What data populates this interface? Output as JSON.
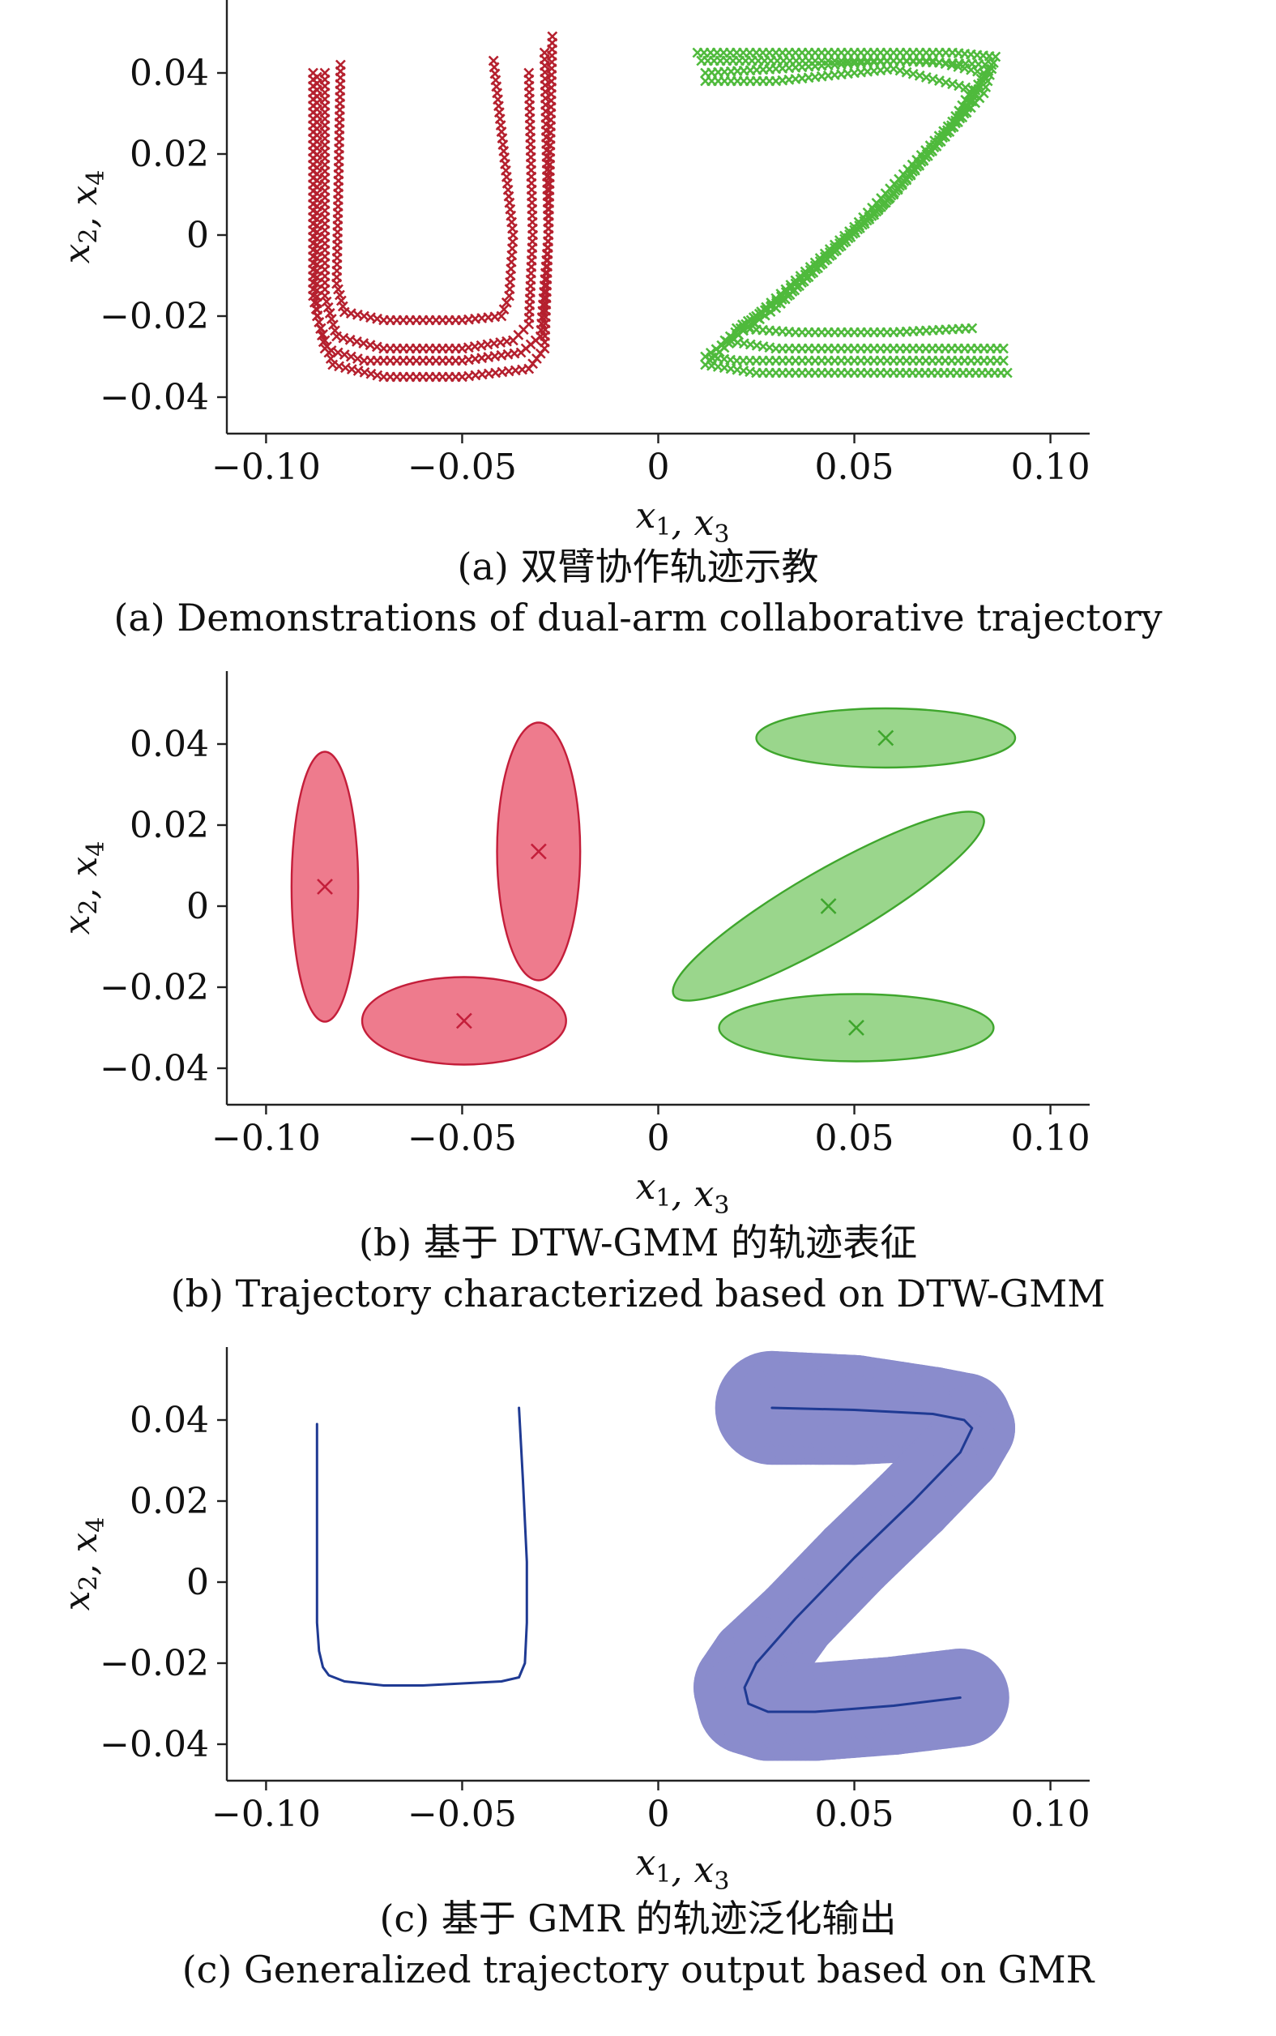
{
  "panels": [
    {
      "caption_cn": "(a) 双臂协作轨迹示教",
      "caption_en": "(a) Demonstrations of dual-arm collaborative trajectory"
    },
    {
      "caption_cn": "(b) 基于 DTW-GMM 的轨迹表征",
      "caption_en": "(b) Trajectory characterized based on DTW-GMM"
    },
    {
      "caption_cn": "(c) 基于 GMR 的轨迹泛化输出",
      "caption_en": "(c) Generalized trajectory output based on GMR"
    }
  ],
  "colors": {
    "u_demo": "#b5202e",
    "z_demo": "#4fba3c",
    "u_gmm_fill": "#ec6d81",
    "u_gmm_edge": "#c41e3a",
    "z_gmm_fill": "#8fd17f",
    "z_gmm_edge": "#3fa62d",
    "gmr_band": "#8a8ccc",
    "gmr_line": "#1f3a93"
  },
  "chart_data": [
    {
      "type": "scatter",
      "xlabel": "x1, x3",
      "ylabel": "x2, x4",
      "xlim": [
        -0.11,
        0.11
      ],
      "ylim": [
        -0.049,
        0.058
      ],
      "xticks": [
        -0.1,
        -0.05,
        0,
        0.05,
        0.1
      ],
      "xtick_labels": [
        "−0.10",
        "−0.05",
        "0",
        "0.05",
        "0.10"
      ],
      "yticks": [
        0.04,
        0.02,
        0,
        -0.02,
        -0.04
      ],
      "ytick_labels": [
        "0.04",
        "0.02",
        "0",
        "−0.02",
        "−0.04"
      ],
      "marker": "x",
      "series": [
        {
          "color": "#b5202e",
          "demos": [
            [
              [
                -0.088,
                0.04
              ],
              [
                -0.088,
                -0.015
              ],
              [
                -0.085,
                -0.028
              ],
              [
                -0.075,
                -0.031
              ],
              [
                -0.05,
                -0.031
              ],
              [
                -0.035,
                -0.029
              ],
              [
                -0.03,
                -0.025
              ],
              [
                -0.028,
                0.0
              ],
              [
                -0.027,
                0.049
              ]
            ],
            [
              [
                -0.085,
                0.04
              ],
              [
                -0.085,
                -0.015
              ],
              [
                -0.082,
                -0.025
              ],
              [
                -0.07,
                -0.028
              ],
              [
                -0.05,
                -0.028
              ],
              [
                -0.037,
                -0.026
              ],
              [
                -0.033,
                -0.022
              ],
              [
                -0.032,
                0.0
              ],
              [
                -0.033,
                0.04
              ]
            ],
            [
              [
                -0.081,
                0.042
              ],
              [
                -0.082,
                -0.012
              ],
              [
                -0.08,
                -0.019
              ],
              [
                -0.07,
                -0.021
              ],
              [
                -0.05,
                -0.021
              ],
              [
                -0.04,
                -0.02
              ],
              [
                -0.038,
                -0.015
              ],
              [
                -0.037,
                0.0
              ],
              [
                -0.042,
                0.043
              ]
            ],
            [
              [
                -0.087,
                0.039
              ],
              [
                -0.087,
                -0.02
              ],
              [
                -0.083,
                -0.032
              ],
              [
                -0.07,
                -0.035
              ],
              [
                -0.05,
                -0.035
              ],
              [
                -0.033,
                -0.033
              ],
              [
                -0.029,
                -0.028
              ],
              [
                -0.028,
                0.0
              ],
              [
                -0.029,
                0.045
              ]
            ]
          ]
        },
        {
          "color": "#4fba3c",
          "demos": [
            [
              [
                0.01,
                0.045
              ],
              [
                0.04,
                0.045
              ],
              [
                0.075,
                0.045
              ],
              [
                0.086,
                0.044
              ],
              [
                0.083,
                0.035
              ],
              [
                0.06,
                0.01
              ],
              [
                0.035,
                -0.012
              ],
              [
                0.012,
                -0.032
              ],
              [
                0.025,
                -0.034
              ],
              [
                0.06,
                -0.034
              ],
              [
                0.089,
                -0.034
              ]
            ],
            [
              [
                0.011,
                0.043
              ],
              [
                0.04,
                0.043
              ],
              [
                0.07,
                0.043
              ],
              [
                0.083,
                0.04
              ],
              [
                0.078,
                0.03
              ],
              [
                0.055,
                0.005
              ],
              [
                0.03,
                -0.018
              ],
              [
                0.012,
                -0.03
              ],
              [
                0.02,
                -0.031
              ],
              [
                0.06,
                -0.031
              ],
              [
                0.088,
                -0.031
              ]
            ],
            [
              [
                0.012,
                0.038
              ],
              [
                0.03,
                0.038
              ],
              [
                0.06,
                0.041
              ],
              [
                0.08,
                0.036
              ],
              [
                0.075,
                0.028
              ],
              [
                0.05,
                0.002
              ],
              [
                0.025,
                -0.02
              ],
              [
                0.017,
                -0.026
              ],
              [
                0.03,
                -0.028
              ],
              [
                0.06,
                -0.028
              ],
              [
                0.088,
                -0.028
              ]
            ],
            [
              [
                0.012,
                0.04
              ],
              [
                0.03,
                0.041
              ],
              [
                0.06,
                0.043
              ],
              [
                0.085,
                0.042
              ],
              [
                0.08,
                0.033
              ],
              [
                0.058,
                0.008
              ],
              [
                0.033,
                -0.015
              ],
              [
                0.02,
                -0.023
              ],
              [
                0.035,
                -0.024
              ],
              [
                0.06,
                -0.024
              ],
              [
                0.08,
                -0.023
              ]
            ]
          ]
        }
      ]
    },
    {
      "type": "scatter",
      "xlabel": "x1, x3",
      "ylabel": "x2, x4",
      "xlim": [
        -0.11,
        0.11
      ],
      "ylim": [
        -0.049,
        0.058
      ],
      "xticks": [
        -0.1,
        -0.05,
        0,
        0.05,
        0.1
      ],
      "xtick_labels": [
        "−0.10",
        "−0.05",
        "0",
        "0.05",
        "0.10"
      ],
      "yticks": [
        0.04,
        0.02,
        0,
        -0.02,
        -0.04
      ],
      "ytick_labels": [
        "0.04",
        "0.02",
        "0",
        "−0.02",
        "−0.04"
      ],
      "gaussians": [
        {
          "cx": -0.085,
          "cy": 0.0048,
          "rx": 0.0085,
          "ry": 0.0333,
          "angle": 0,
          "group": "u"
        },
        {
          "cx": -0.0495,
          "cy": -0.0283,
          "rx": 0.026,
          "ry": 0.0108,
          "angle": 0,
          "group": "u"
        },
        {
          "cx": -0.0305,
          "cy": 0.0135,
          "rx": 0.0106,
          "ry": 0.0318,
          "angle": 0,
          "group": "u"
        },
        {
          "cx": 0.058,
          "cy": 0.0415,
          "rx": 0.033,
          "ry": 0.0073,
          "angle": 0,
          "group": "z"
        },
        {
          "cx": 0.0434,
          "cy": 0.0,
          "rx": 0.0455,
          "ry": 0.0088,
          "angle": 30,
          "group": "z"
        },
        {
          "cx": 0.0505,
          "cy": -0.03,
          "rx": 0.035,
          "ry": 0.0083,
          "angle": 0,
          "group": "z"
        }
      ]
    },
    {
      "type": "line",
      "xlabel": "x1, x3",
      "ylabel": "x2, x4",
      "xlim": [
        -0.11,
        0.11
      ],
      "ylim": [
        -0.049,
        0.058
      ],
      "xticks": [
        -0.1,
        -0.05,
        0,
        0.05,
        0.1
      ],
      "xtick_labels": [
        "−0.10",
        "−0.05",
        "0",
        "0.05",
        "0.10"
      ],
      "yticks": [
        0.04,
        0.02,
        0,
        -0.02,
        -0.04
      ],
      "ytick_labels": [
        "0.04",
        "0.02",
        "0",
        "−0.02",
        "−0.04"
      ],
      "series": [
        {
          "color": "#1f3a93",
          "x": [
            -0.087,
            -0.087,
            -0.087,
            -0.087,
            -0.087,
            -0.0865,
            -0.0855,
            -0.084,
            -0.08,
            -0.07,
            -0.06,
            -0.05,
            -0.04,
            -0.0355,
            -0.034,
            -0.0335,
            -0.0335,
            -0.0345,
            -0.0355
          ],
          "y": [
            0.039,
            0.03,
            0.015,
            0.0,
            -0.01,
            -0.017,
            -0.021,
            -0.023,
            -0.0245,
            -0.0255,
            -0.0255,
            -0.025,
            -0.0245,
            -0.0235,
            -0.02,
            -0.01,
            0.005,
            0.025,
            0.043
          ]
        },
        {
          "color": "#1f3a93",
          "x": [
            0.029,
            0.05,
            0.07,
            0.078,
            0.08,
            0.077,
            0.065,
            0.05,
            0.035,
            0.025,
            0.022,
            0.023,
            0.028,
            0.04,
            0.06,
            0.077
          ],
          "y": [
            0.043,
            0.0425,
            0.0415,
            0.04,
            0.038,
            0.032,
            0.02,
            0.006,
            -0.009,
            -0.02,
            -0.026,
            -0.03,
            -0.032,
            -0.032,
            -0.0305,
            -0.0285
          ]
        }
      ],
      "band": {
        "color": "#8a8ccc",
        "x": [
          0.029,
          0.05,
          0.07,
          0.078,
          0.08,
          0.077,
          0.065,
          0.05,
          0.035,
          0.025,
          0.022,
          0.023,
          0.028,
          0.04,
          0.06,
          0.077
        ],
        "y": [
          0.043,
          0.0425,
          0.0415,
          0.04,
          0.038,
          0.032,
          0.02,
          0.006,
          -0.009,
          -0.02,
          -0.026,
          -0.03,
          -0.032,
          -0.032,
          -0.0305,
          -0.0285
        ],
        "halfwidth": [
          0.0145,
          0.014,
          0.012,
          0.012,
          0.011,
          0.0105,
          0.0105,
          0.0105,
          0.0105,
          0.012,
          0.013,
          0.013,
          0.0125,
          0.0125,
          0.0125,
          0.0125
        ]
      }
    }
  ]
}
